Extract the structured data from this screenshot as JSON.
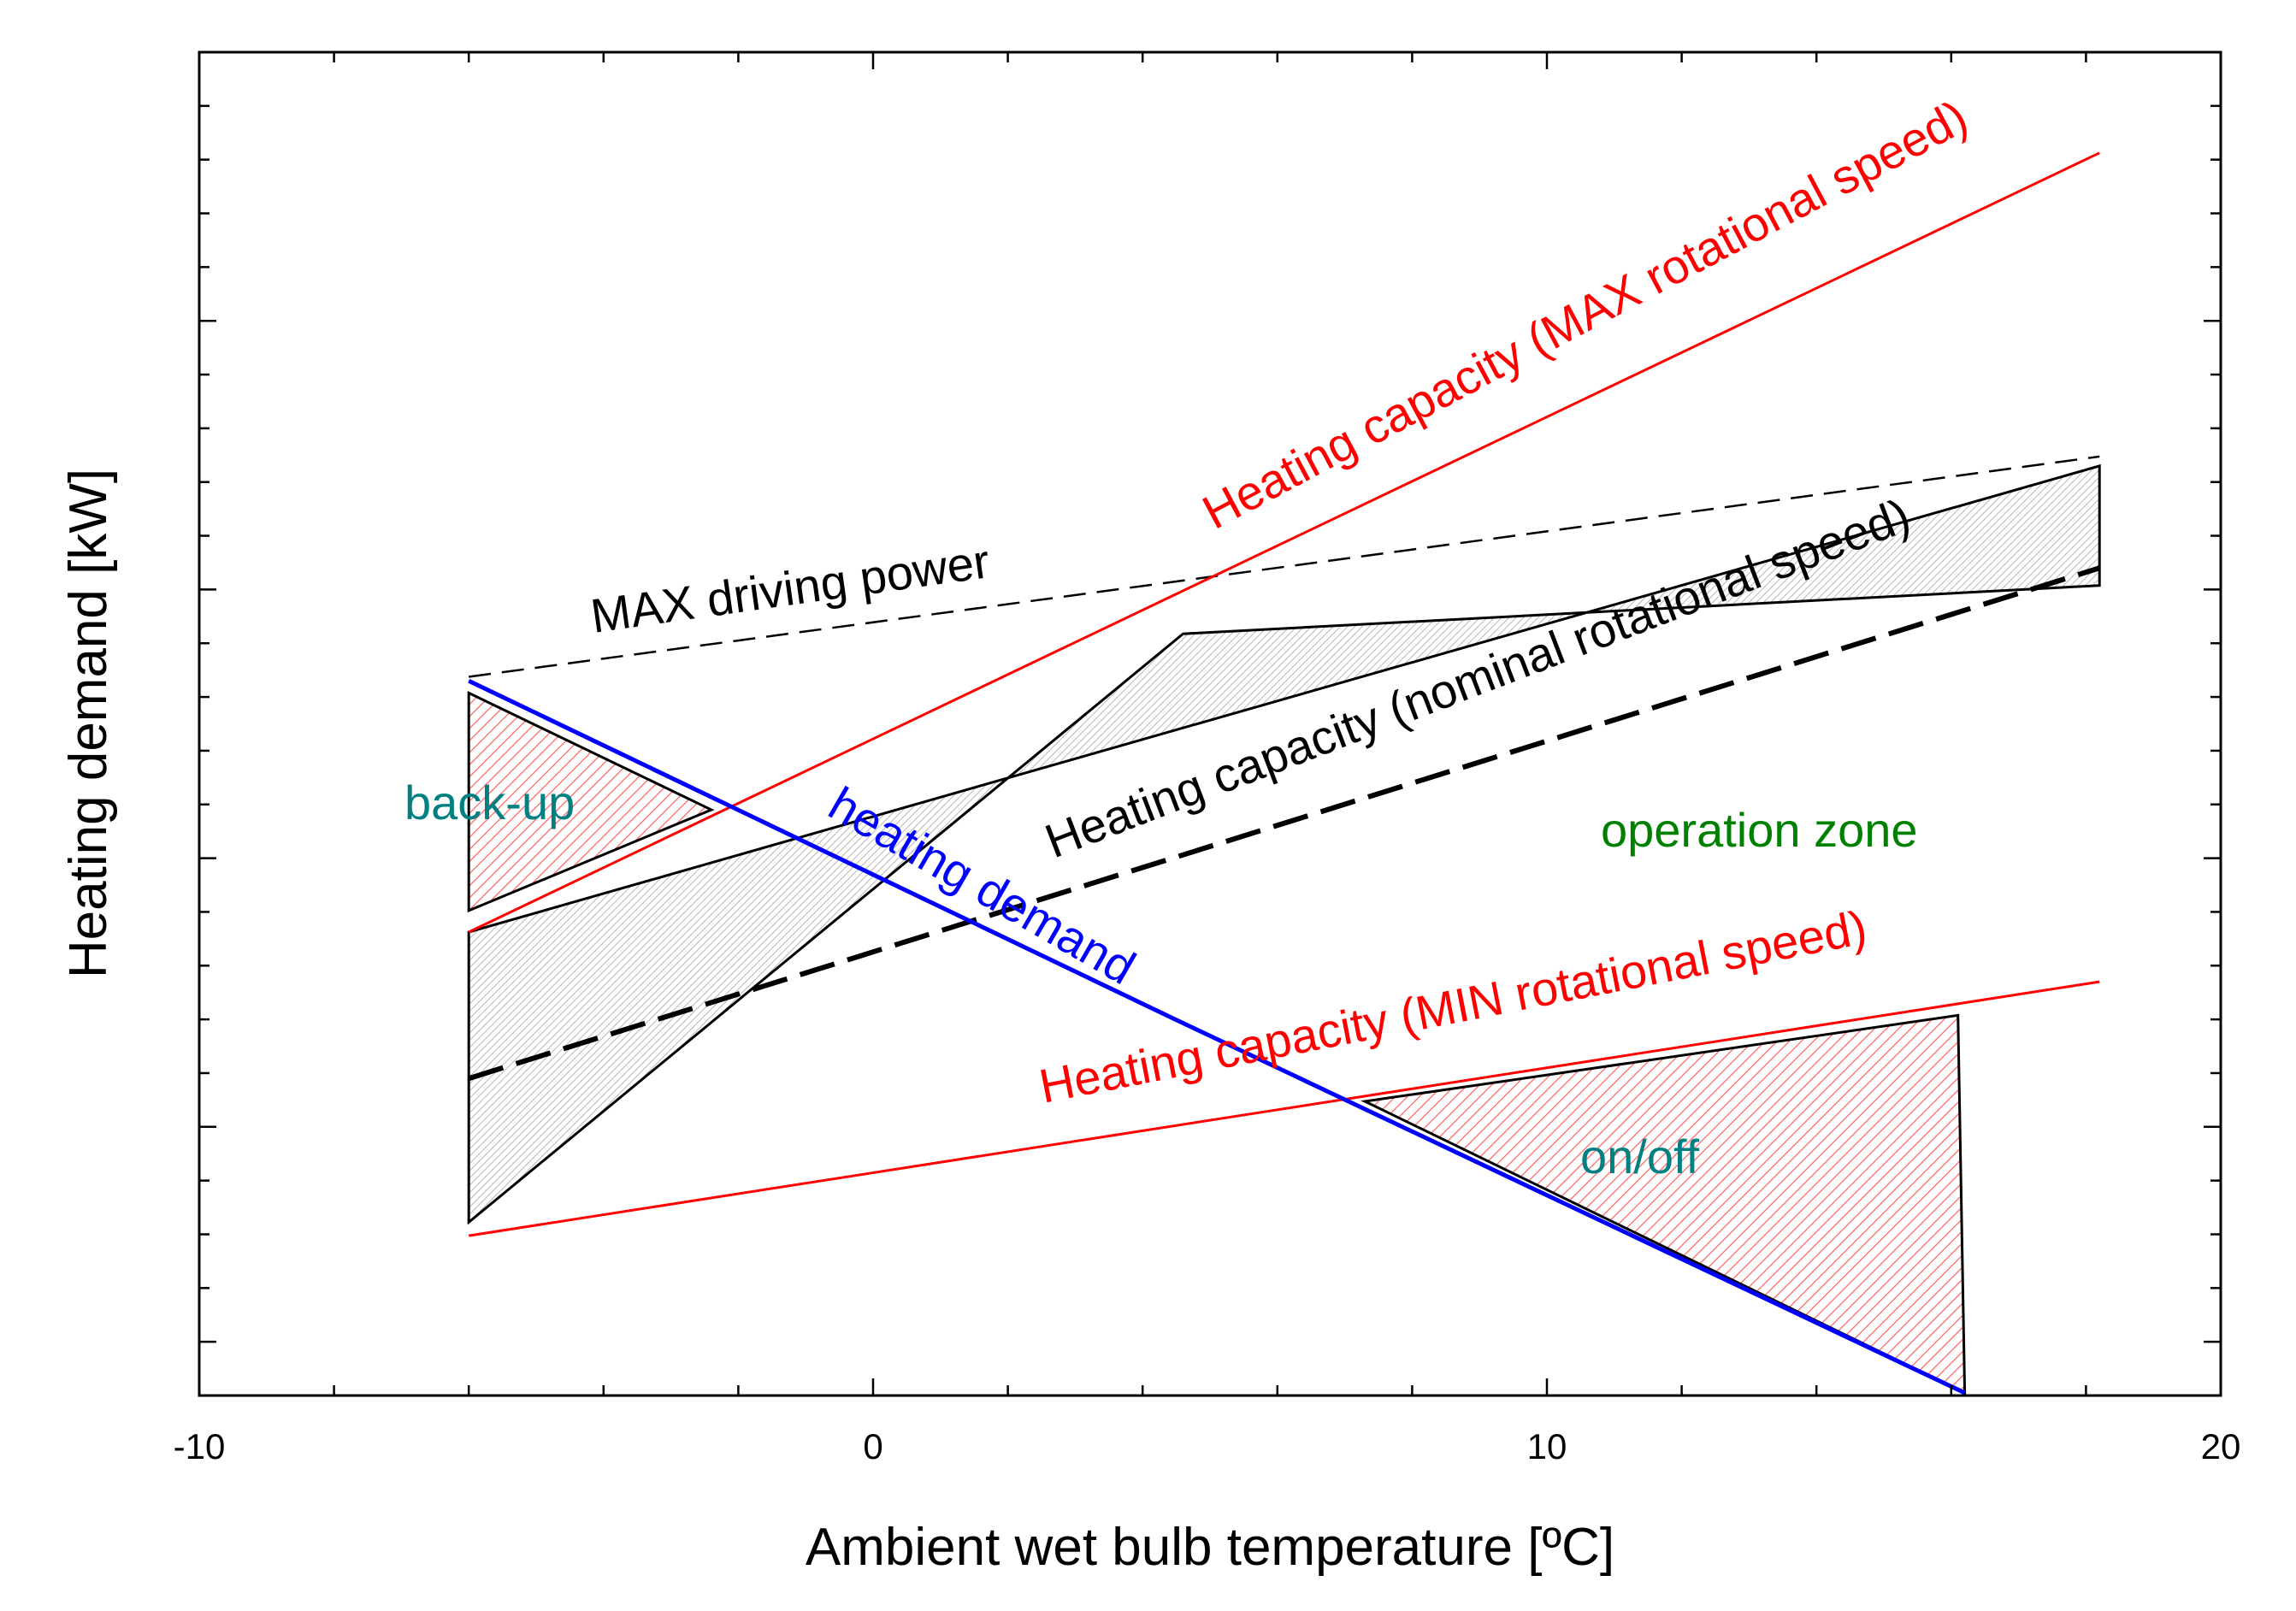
{
  "chart_data": {
    "type": "line",
    "title": "",
    "xlabel": "Ambient wet bulb temperature [ºC]",
    "ylabel": "Heating demand [kW]",
    "xlim": [
      -10,
      20
    ],
    "ylim": [
      0,
      100
    ],
    "y_tick_labels_shown": false,
    "x_ticks": [
      -10,
      0,
      10,
      20
    ],
    "x_tick_labels": [
      "-10",
      "0",
      "10",
      "20"
    ],
    "x_minor_step": 2,
    "y_major_ticks": [
      4,
      20,
      40,
      60,
      80,
      100
    ],
    "y_minor_ticks": [
      8,
      12,
      16,
      24,
      28,
      32,
      36,
      44,
      48,
      52,
      56,
      64,
      68,
      72,
      76,
      84,
      88,
      92,
      96
    ],
    "series": [
      {
        "name": "Heating capacity (MAX rotational speed)",
        "color": "#ff0000",
        "style": "solid",
        "x": [
          -6,
          18.2
        ],
        "y": [
          34.5,
          92.5
        ]
      },
      {
        "name": "Heating capacity (MIN rotational speed)",
        "color": "#ff0000",
        "style": "solid",
        "x": [
          -6,
          18.2
        ],
        "y": [
          11.9,
          30.8
        ]
      },
      {
        "name": "Heating capacity (nominal rotational speed)",
        "color": "#000000",
        "style": "dashed-bold",
        "x": [
          -6,
          18.2
        ],
        "y": [
          23.6,
          61.6
        ]
      },
      {
        "name": "MAX driving power",
        "color": "#000000",
        "style": "dashed",
        "x": [
          -6,
          4.8,
          18.2
        ],
        "y": [
          53.5,
          60.8,
          69.9
        ]
      },
      {
        "name": "heating demand",
        "color": "#0000ff",
        "style": "solid",
        "x": [
          -6,
          4.4,
          16.2
        ],
        "y": [
          53.2,
          28.2,
          0.2
        ]
      }
    ],
    "regions": [
      {
        "name": "operation zone",
        "fill": "hatched-gray",
        "x": [
          -6,
          -6,
          4.6,
          18.2,
          18.2,
          -6
        ],
        "y": [
          34.5,
          12.9,
          56.7,
          60.3,
          69.2,
          34.5
        ]
      },
      {
        "name": "back-up",
        "fill": "hatched-red",
        "x": [
          -6,
          -2.4,
          -6
        ],
        "y": [
          52.3,
          43.6,
          36.1
        ]
      },
      {
        "name": "on/off",
        "fill": "hatched-red",
        "x": [
          7.3,
          16.1,
          16.2
        ],
        "y": [
          21.9,
          28.3,
          0.2
        ]
      }
    ],
    "annotations": [
      {
        "text": "Heating capacity (MAX rotational speed)",
        "color": "#ff0000"
      },
      {
        "text": "MAX driving power",
        "color": "#000000"
      },
      {
        "text": "Heating capacity (nominal rotational speed)",
        "color": "#000000"
      },
      {
        "text": "heating demand",
        "color": "#0000ff"
      },
      {
        "text": "back-up",
        "color": "#008080"
      },
      {
        "text": "operation zone",
        "color": "#008000"
      },
      {
        "text": "Heating capacity (MIN rotational speed)",
        "color": "#ff0000"
      },
      {
        "text": "on/off",
        "color": "#008080"
      }
    ]
  }
}
